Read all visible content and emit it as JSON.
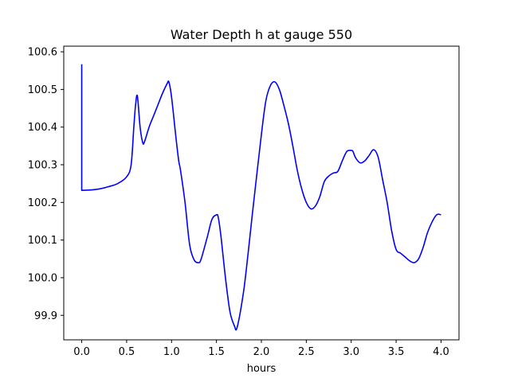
{
  "chart_data": {
    "type": "line",
    "title": "Water Depth h at gauge 550",
    "xlabel": "hours",
    "ylabel": "",
    "xlim": [
      -0.2,
      4.2
    ],
    "ylim": [
      99.835,
      100.615
    ],
    "xticks": [
      0.0,
      0.5,
      1.0,
      1.5,
      2.0,
      2.5,
      3.0,
      3.5,
      4.0
    ],
    "xtick_labels": [
      "0.0",
      "0.5",
      "1.0",
      "1.5",
      "2.0",
      "2.5",
      "3.0",
      "3.5",
      "4.0"
    ],
    "yticks": [
      99.9,
      100.0,
      100.1,
      100.2,
      100.3,
      100.4,
      100.5,
      100.6
    ],
    "ytick_labels": [
      "99.9",
      "100.0",
      "100.1",
      "100.2",
      "100.3",
      "100.4",
      "100.5",
      "100.6"
    ],
    "grid": false,
    "color": "#0000ff",
    "series": [
      {
        "x": [
          0.0,
          0.0,
          0.0,
          0.1,
          0.2,
          0.3,
          0.4,
          0.5,
          0.55,
          0.58,
          0.6,
          0.62,
          0.65,
          0.68,
          0.7,
          0.75,
          0.8,
          0.85,
          0.9,
          0.95,
          0.97,
          1.0,
          1.05,
          1.08,
          1.1,
          1.15,
          1.2,
          1.25,
          1.3,
          1.33,
          1.4,
          1.45,
          1.5,
          1.52,
          1.55,
          1.6,
          1.65,
          1.7,
          1.73,
          1.8,
          1.85,
          1.9,
          2.0,
          2.05,
          2.1,
          2.15,
          2.2,
          2.25,
          2.3,
          2.35,
          2.4,
          2.45,
          2.5,
          2.55,
          2.6,
          2.65,
          2.7,
          2.75,
          2.8,
          2.85,
          2.9,
          2.95,
          3.0,
          3.02,
          3.05,
          3.1,
          3.15,
          3.2,
          3.25,
          3.3,
          3.35,
          3.4,
          3.45,
          3.5,
          3.55,
          3.6,
          3.65,
          3.7,
          3.75,
          3.8,
          3.85,
          3.9,
          3.95,
          4.0
        ],
        "y": [
          100.567,
          100.52,
          100.232,
          100.233,
          100.236,
          100.242,
          100.25,
          100.268,
          100.3,
          100.4,
          100.46,
          100.482,
          100.4,
          100.358,
          100.362,
          100.4,
          100.43,
          100.46,
          100.49,
          100.515,
          100.52,
          100.48,
          100.37,
          100.31,
          100.285,
          100.2,
          100.09,
          100.048,
          100.04,
          100.05,
          100.11,
          100.155,
          100.167,
          100.16,
          100.11,
          100.0,
          99.91,
          99.872,
          99.868,
          99.96,
          100.06,
          100.17,
          100.38,
          100.47,
          100.51,
          100.52,
          100.5,
          100.458,
          100.41,
          100.35,
          100.285,
          100.235,
          100.2,
          100.183,
          100.19,
          100.215,
          100.255,
          100.27,
          100.278,
          100.282,
          100.31,
          100.335,
          100.338,
          100.335,
          100.318,
          100.305,
          100.31,
          100.325,
          100.34,
          100.32,
          100.26,
          100.2,
          100.125,
          100.075,
          100.065,
          100.055,
          100.045,
          100.04,
          100.05,
          100.08,
          100.12,
          100.148,
          100.167,
          100.167
        ]
      }
    ]
  }
}
